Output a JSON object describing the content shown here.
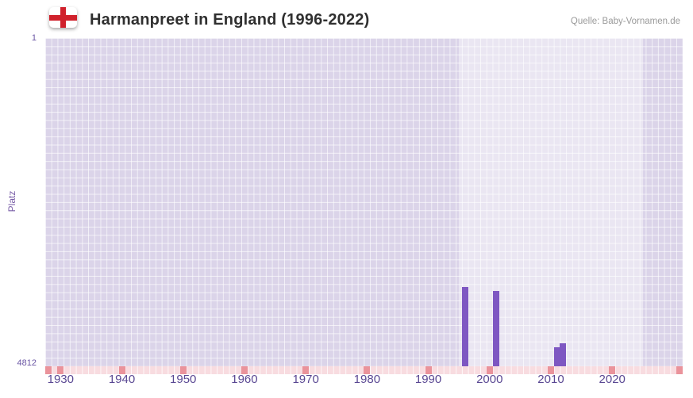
{
  "header": {
    "title": "Harmanpreet in England (1996-2022)",
    "source": "Quelle: Baby-Vornamen.de",
    "flag_icon": "england-flag"
  },
  "chart_data": {
    "type": "bar",
    "title": "Harmanpreet in England (1996-2022)",
    "xlabel": "",
    "ylabel": "Platz",
    "x_ticks": [
      1930,
      1940,
      1950,
      1960,
      1970,
      1980,
      1990,
      2000,
      2010,
      2020
    ],
    "y_tick_labels": [
      "1",
      "4812"
    ],
    "xlim": [
      1927.5,
      2031.5
    ],
    "ylim": [
      1,
      4812
    ],
    "y_axis_inverted": true,
    "grid": true,
    "legend": false,
    "highlight_years": [
      1995,
      2025
    ],
    "series": [
      {
        "name": "Platz",
        "points": [
          {
            "year": 1996,
            "rank": 3650
          },
          {
            "year": 2001,
            "rank": 3710
          },
          {
            "year": 2011,
            "rank": 4530
          },
          {
            "year": 2012,
            "rank": 4470
          }
        ]
      }
    ]
  },
  "colors": {
    "bar": "#7e57c2",
    "plot_bg": "#dbd4e9",
    "grid_line": "#ffffff",
    "strip_bg": "#f8dce0",
    "strip_tick": "#ea939b",
    "axis_text": "#6a55a4",
    "axis_text_x": "#5a4893",
    "axis_label_text": "#7a5fa8",
    "title_text": "#303030",
    "source_text": "#9a9a9a",
    "flag_red": "#d0212c"
  }
}
